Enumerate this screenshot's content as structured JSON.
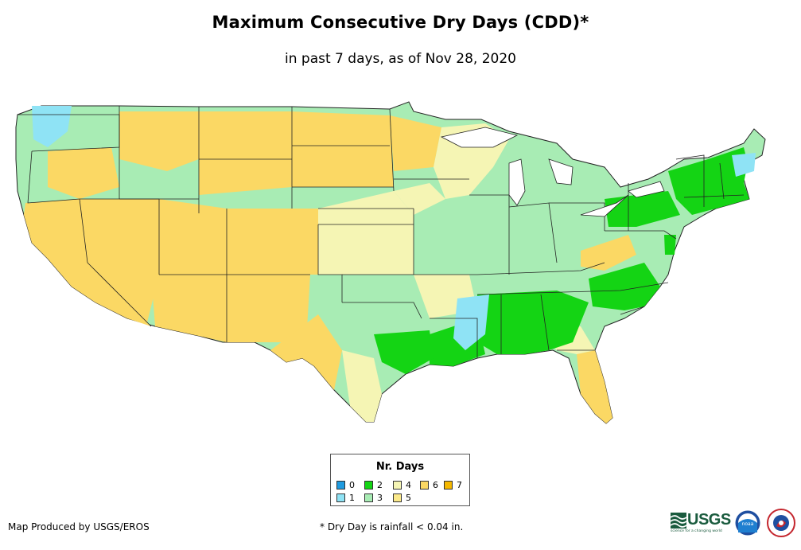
{
  "title": "Maximum Consecutive Dry Days (CDD)*",
  "subtitle": "in past 7 days, as of Nov 28, 2020",
  "legend": {
    "title": "Nr. Days",
    "items": [
      {
        "label": "0",
        "color": "#1f9be0"
      },
      {
        "label": "1",
        "color": "#8fe3f5"
      },
      {
        "label": "2",
        "color": "#14d414"
      },
      {
        "label": "3",
        "color": "#a8ecb4"
      },
      {
        "label": "4",
        "color": "#f5f5b4"
      },
      {
        "label": "5",
        "color": "#fbe98a"
      },
      {
        "label": "6",
        "color": "#fbd864"
      },
      {
        "label": "7",
        "color": "#f5b800"
      }
    ]
  },
  "credit": "Map Produced by USGS/EROS",
  "footnote": "* Dry Day is rainfall < 0.04 in.",
  "logos": {
    "usgs": "USGS",
    "usgs_tagline": "science for a changing world",
    "noaa": "noaa",
    "nws_icon": "nws-logo-icon"
  }
}
